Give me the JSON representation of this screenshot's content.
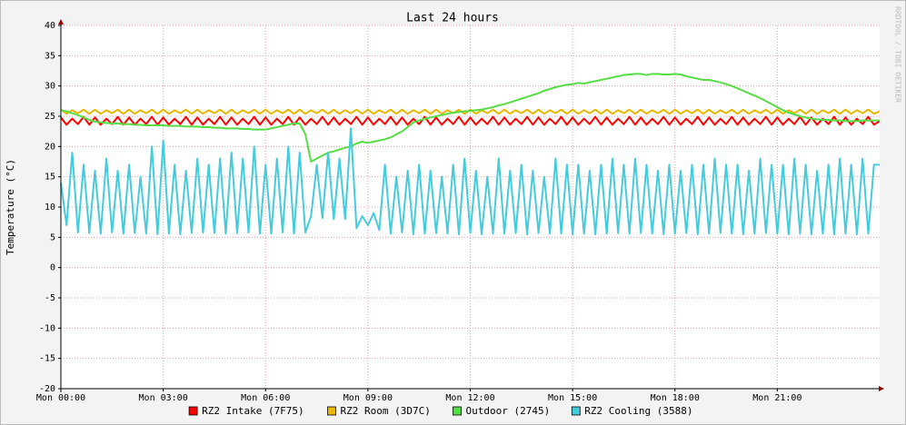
{
  "chart_data": {
    "type": "line",
    "title": "Last 24 hours",
    "y_label": "Temperature (°C)",
    "watermark": "RRDTOOL / TOBI OETIKER",
    "x": [
      0,
      10,
      20,
      30,
      40,
      50,
      60,
      70,
      80,
      90,
      100,
      110,
      120,
      130,
      140,
      150,
      160,
      170,
      180,
      190,
      200,
      210,
      220,
      230,
      240,
      250,
      260,
      270,
      280,
      290,
      300,
      310,
      320,
      330,
      340,
      350,
      360,
      370,
      380,
      390,
      400,
      410,
      420,
      430,
      440,
      450,
      460,
      470,
      480,
      490,
      500,
      510,
      520,
      530,
      540,
      550,
      560,
      570,
      580,
      590,
      600,
      610,
      620,
      630,
      640,
      650,
      660,
      670,
      680,
      690,
      700,
      710,
      720,
      730,
      740,
      750,
      760,
      770,
      780,
      790,
      800,
      810,
      820,
      830,
      840,
      850,
      860,
      870,
      880,
      890,
      900,
      910,
      920,
      930,
      940,
      950,
      960,
      970,
      980,
      990,
      1000,
      1010,
      1020,
      1030,
      1040,
      1050,
      1060,
      1070,
      1080,
      1090,
      1100,
      1110,
      1120,
      1130,
      1140,
      1150,
      1160,
      1170,
      1180,
      1190,
      1200,
      1210,
      1220,
      1230,
      1240,
      1250,
      1260,
      1270,
      1280,
      1290,
      1300,
      1310,
      1320,
      1330,
      1340,
      1350,
      1360,
      1370,
      1380,
      1390,
      1400,
      1410,
      1420,
      1430,
      1440
    ],
    "xlim": [
      0,
      1440
    ],
    "xticks": [
      {
        "value": 0,
        "label": "Mon 00:00"
      },
      {
        "value": 180,
        "label": "Mon 03:00"
      },
      {
        "value": 360,
        "label": "Mon 06:00"
      },
      {
        "value": 540,
        "label": "Mon 09:00"
      },
      {
        "value": 720,
        "label": "Mon 12:00"
      },
      {
        "value": 900,
        "label": "Mon 15:00"
      },
      {
        "value": 1080,
        "label": "Mon 18:00"
      },
      {
        "value": 1260,
        "label": "Mon 21:00"
      }
    ],
    "ylim": [
      -20,
      40
    ],
    "yticks": [
      -20,
      -15,
      -10,
      -5,
      0,
      5,
      10,
      15,
      20,
      25,
      30,
      35,
      40
    ],
    "grid": true,
    "legend": "bottom",
    "series": [
      {
        "name": "RZ2 Intake (7F75)",
        "color": "#ff0000",
        "values": [
          24.8,
          23.6,
          24.6,
          23.7,
          24.9,
          23.6,
          24.8,
          23.6,
          24.6,
          23.7,
          24.9,
          23.6,
          24.8,
          23.6,
          24.6,
          23.7,
          24.9,
          23.6,
          24.8,
          23.6,
          24.6,
          23.7,
          24.9,
          23.6,
          24.8,
          23.6,
          24.6,
          23.7,
          24.9,
          23.6,
          24.8,
          23.6,
          24.6,
          23.7,
          24.9,
          23.6,
          24.8,
          23.6,
          24.6,
          23.7,
          24.9,
          23.6,
          24.8,
          23.6,
          24.6,
          23.7,
          24.9,
          23.6,
          24.8,
          23.6,
          24.6,
          23.7,
          24.9,
          23.6,
          24.8,
          23.6,
          24.6,
          23.7,
          24.9,
          23.6,
          24.8,
          23.6,
          24.6,
          23.7,
          24.9,
          23.6,
          24.8,
          23.6,
          24.6,
          23.7,
          24.9,
          23.6,
          24.8,
          23.6,
          24.6,
          23.7,
          24.9,
          23.6,
          24.8,
          23.6,
          24.6,
          23.7,
          24.9,
          23.6,
          24.8,
          23.6,
          24.6,
          23.7,
          24.9,
          23.6,
          24.8,
          23.6,
          24.6,
          23.7,
          24.9,
          23.6,
          24.8,
          23.6,
          24.6,
          23.7,
          24.9,
          23.6,
          24.8,
          23.6,
          24.6,
          23.7,
          24.9,
          23.6,
          24.8,
          23.6,
          24.6,
          23.7,
          24.9,
          23.6,
          24.8,
          23.6,
          24.6,
          23.7,
          24.9,
          23.6,
          24.8,
          23.6,
          24.6,
          23.7,
          24.9,
          23.6,
          24.8,
          23.6,
          24.6,
          23.7,
          24.9,
          23.6,
          24.8,
          23.6,
          24.6,
          23.7,
          24.9,
          23.6,
          24.8,
          23.6,
          24.6,
          23.7,
          24.9,
          23.6,
          24.2
        ]
      },
      {
        "name": "RZ2 Room (3D7C)",
        "color": "#e8b800",
        "values": [
          26.1,
          25.4,
          26,
          25.5,
          26.1,
          25.4,
          26.1,
          25.4,
          26,
          25.5,
          26.1,
          25.4,
          26.1,
          25.4,
          26,
          25.5,
          26.1,
          25.4,
          26.1,
          25.4,
          26,
          25.5,
          26.1,
          25.4,
          26.1,
          25.4,
          26,
          25.5,
          26.1,
          25.4,
          26.1,
          25.4,
          26,
          25.5,
          26.1,
          25.4,
          26.1,
          25.4,
          26,
          25.5,
          26.1,
          25.4,
          26.1,
          25.4,
          26,
          25.5,
          26.1,
          25.4,
          26.1,
          25.4,
          26,
          25.5,
          26.1,
          25.4,
          26.1,
          25.4,
          26,
          25.5,
          26.1,
          25.4,
          26.1,
          25.4,
          26,
          25.5,
          26.1,
          25.4,
          26.1,
          25.4,
          26,
          25.5,
          26.1,
          25.4,
          26.1,
          25.4,
          26,
          25.5,
          26.1,
          25.4,
          26.1,
          25.4,
          26,
          25.5,
          26.1,
          25.4,
          26.1,
          25.4,
          26,
          25.5,
          26.1,
          25.4,
          26.1,
          25.4,
          26,
          25.5,
          26.1,
          25.4,
          26.1,
          25.4,
          26,
          25.5,
          26.1,
          25.4,
          26.1,
          25.4,
          26,
          25.5,
          26.1,
          25.4,
          26.1,
          25.4,
          26,
          25.5,
          26.1,
          25.4,
          26.1,
          25.4,
          26,
          25.5,
          26.1,
          25.4,
          26.1,
          25.4,
          26,
          25.5,
          26.1,
          25.4,
          26.1,
          25.4,
          26,
          25.5,
          26.1,
          25.4,
          26.1,
          25.4,
          26,
          25.5,
          26.1,
          25.4,
          26.1,
          25.4,
          26,
          25.5,
          26.1,
          25.4,
          25.8
        ]
      },
      {
        "name": "Outdoor (2745)",
        "color": "#55dd44",
        "values": [
          26,
          25.8,
          25.5,
          25.2,
          24.8,
          24.4,
          24.1,
          24,
          23.9,
          23.8,
          23.8,
          23.7,
          23.7,
          23.6,
          23.6,
          23.5,
          23.5,
          23.5,
          23.5,
          23.4,
          23.4,
          23.4,
          23.3,
          23.3,
          23.3,
          23.2,
          23.2,
          23.1,
          23.1,
          23,
          23,
          23,
          22.9,
          22.9,
          22.8,
          22.8,
          22.8,
          23,
          23.2,
          23.4,
          23.6,
          23.8,
          23.8,
          22,
          17.5,
          18,
          18.5,
          19,
          19.2,
          19.5,
          19.8,
          20,
          20.5,
          20.8,
          20.6,
          20.8,
          21,
          21.2,
          21.5,
          22,
          22.5,
          23.2,
          24,
          24.3,
          24.6,
          24.8,
          25,
          25.2,
          25.4,
          25.6,
          25.7,
          25.8,
          25.9,
          26,
          26.1,
          26.3,
          26.5,
          26.8,
          27,
          27.3,
          27.6,
          27.9,
          28.2,
          28.5,
          28.8,
          29.2,
          29.5,
          29.8,
          30,
          30.2,
          30.3,
          30.5,
          30.4,
          30.6,
          30.8,
          31,
          31.2,
          31.4,
          31.6,
          31.8,
          31.9,
          32,
          32,
          31.8,
          32,
          32,
          31.9,
          31.9,
          32,
          31.9,
          31.6,
          31.4,
          31.2,
          31,
          31,
          30.8,
          30.6,
          30.3,
          30,
          29.6,
          29.2,
          28.8,
          28.4,
          28,
          27.5,
          27,
          26.5,
          26,
          25.6,
          25.3,
          25,
          24.8,
          24.6,
          24.5,
          24.4,
          24.4,
          24.3,
          24.3,
          24.2,
          24.2,
          24.2,
          24.3,
          24.3,
          24.3,
          24.3
        ]
      },
      {
        "name": "RZ2 Cooling (3588)",
        "color": "#44ccdd",
        "values": [
          14,
          7,
          19,
          5.8,
          17,
          5.7,
          16,
          5.6,
          18,
          5.8,
          16,
          5.6,
          17,
          5.7,
          15,
          5.6,
          20,
          5.5,
          21,
          5.6,
          17,
          5.5,
          16,
          5.7,
          18,
          5.8,
          17,
          5.7,
          18,
          5.6,
          19,
          5.7,
          18,
          5.8,
          20,
          5.6,
          17,
          5.6,
          18,
          5.8,
          20,
          5.6,
          19,
          5.8,
          8.5,
          17,
          8.2,
          19,
          8,
          18,
          8,
          23,
          6.5,
          8.5,
          7,
          9,
          6.2,
          17,
          5.6,
          15,
          5.8,
          16,
          5.5,
          17,
          5.6,
          16,
          5.7,
          15,
          5.6,
          17,
          5.5,
          18,
          5.7,
          16,
          5.5,
          15,
          5.6,
          18,
          5.6,
          16,
          5.7,
          17,
          5.5,
          16,
          5.7,
          15,
          5.6,
          18,
          5.6,
          17,
          5.5,
          17,
          5.6,
          16,
          5.5,
          17,
          5.6,
          18,
          5.7,
          17,
          5.6,
          18,
          5.7,
          17,
          5.6,
          16,
          5.5,
          17,
          5.6,
          16,
          5.7,
          17,
          5.5,
          17,
          5.6,
          18,
          5.7,
          17,
          5.6,
          17,
          5.5,
          16,
          5.6,
          18,
          5.7,
          17,
          5.6,
          17,
          5.5,
          18,
          5.6,
          17,
          5.5,
          16,
          5.6,
          17,
          5.5,
          18,
          5.6,
          17,
          5.5,
          18,
          5.6,
          17,
          17
        ]
      }
    ]
  }
}
